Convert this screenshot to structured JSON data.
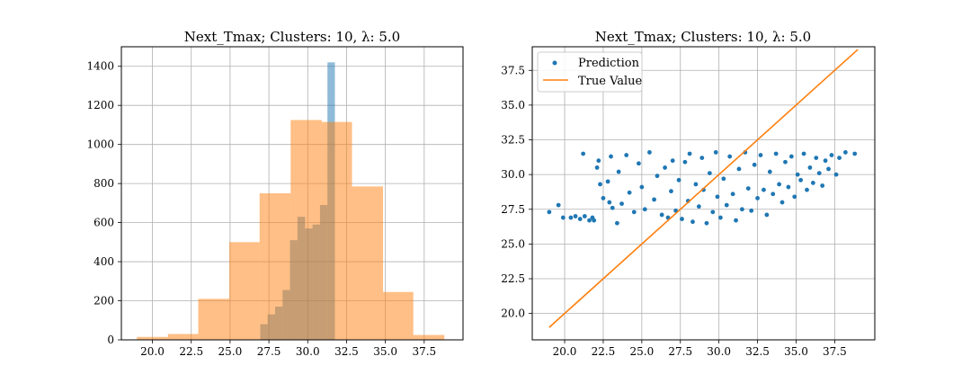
{
  "chart_data": [
    {
      "type": "histogram",
      "title": "Next_Tmax; Clusters: 10, λ: 5.0",
      "xlabel": "",
      "ylabel": "",
      "xlim": [
        18.0,
        40.0
      ],
      "ylim": [
        0,
        1500
      ],
      "xticks": [
        "20.0",
        "22.5",
        "25.0",
        "27.5",
        "30.0",
        "32.5",
        "35.0",
        "37.5"
      ],
      "yticks": [
        "0",
        "200",
        "400",
        "600",
        "800",
        "1000",
        "1200",
        "1400"
      ],
      "grid": true,
      "series": [
        {
          "color": "#1f77b4",
          "opacity": 0.5,
          "bins": [
            {
              "x0": 26.45,
              "x1": 26.94,
              "value": 0
            },
            {
              "x0": 26.94,
              "x1": 27.42,
              "value": 80
            },
            {
              "x0": 27.42,
              "x1": 27.9,
              "value": 130
            },
            {
              "x0": 27.9,
              "x1": 28.38,
              "value": 170
            },
            {
              "x0": 28.38,
              "x1": 28.86,
              "value": 255
            },
            {
              "x0": 28.86,
              "x1": 29.34,
              "value": 510
            },
            {
              "x0": 29.34,
              "x1": 29.83,
              "value": 630
            },
            {
              "x0": 29.83,
              "x1": 30.31,
              "value": 570
            },
            {
              "x0": 30.31,
              "x1": 30.79,
              "value": 590
            },
            {
              "x0": 30.79,
              "x1": 31.27,
              "value": 690
            },
            {
              "x0": 31.27,
              "x1": 31.75,
              "value": 1420
            }
          ]
        },
        {
          "color": "#ff7f0e",
          "opacity": 0.5,
          "bins": [
            {
              "x0": 19.0,
              "x1": 21.0,
              "value": 15
            },
            {
              "x0": 21.0,
              "x1": 22.95,
              "value": 30
            },
            {
              "x0": 22.95,
              "x1": 24.95,
              "value": 210
            },
            {
              "x0": 24.95,
              "x1": 26.9,
              "value": 500
            },
            {
              "x0": 26.9,
              "x1": 28.9,
              "value": 750
            },
            {
              "x0": 28.9,
              "x1": 30.9,
              "value": 1125
            },
            {
              "x0": 30.9,
              "x1": 32.85,
              "value": 1115
            },
            {
              "x0": 32.85,
              "x1": 34.85,
              "value": 785
            },
            {
              "x0": 34.85,
              "x1": 36.8,
              "value": 245
            },
            {
              "x0": 36.8,
              "x1": 38.8,
              "value": 25
            }
          ]
        }
      ]
    },
    {
      "type": "scatter",
      "title": "Next_Tmax; Clusters: 10, λ: 5.0",
      "xlabel": "",
      "ylabel": "",
      "xlim": [
        17.9,
        40.1
      ],
      "ylim": [
        18.1,
        39.2
      ],
      "xticks": [
        "20.0",
        "22.5",
        "25.0",
        "27.5",
        "30.0",
        "32.5",
        "35.0",
        "37.5"
      ],
      "yticks": [
        "20.0",
        "22.5",
        "25.0",
        "27.5",
        "30.0",
        "32.5",
        "35.0",
        "37.5"
      ],
      "grid": true,
      "legend": {
        "placement": "top-left",
        "entries": [
          "Prediction",
          "True Value"
        ]
      },
      "series": [
        {
          "name": "Prediction",
          "kind": "points",
          "color": "#1f77b4",
          "points": [
            [
              19.0,
              27.3
            ],
            [
              19.6,
              27.8
            ],
            [
              19.9,
              26.9
            ],
            [
              20.4,
              26.9
            ],
            [
              20.7,
              27.0
            ],
            [
              21.0,
              26.8
            ],
            [
              21.2,
              31.5
            ],
            [
              21.3,
              27.0
            ],
            [
              21.6,
              26.7
            ],
            [
              21.8,
              26.9
            ],
            [
              21.9,
              26.7
            ],
            [
              22.1,
              30.5
            ],
            [
              22.2,
              31.0
            ],
            [
              22.3,
              29.3
            ],
            [
              22.5,
              28.3
            ],
            [
              22.8,
              29.5
            ],
            [
              22.9,
              28.0
            ],
            [
              23.0,
              31.3
            ],
            [
              23.1,
              27.6
            ],
            [
              23.4,
              26.5
            ],
            [
              23.5,
              30.2
            ],
            [
              23.7,
              27.9
            ],
            [
              24.0,
              31.4
            ],
            [
              24.2,
              28.7
            ],
            [
              24.5,
              27.3
            ],
            [
              24.8,
              30.8
            ],
            [
              25.0,
              29.1
            ],
            [
              25.2,
              27.5
            ],
            [
              25.5,
              31.6
            ],
            [
              25.8,
              28.2
            ],
            [
              26.0,
              29.9
            ],
            [
              26.3,
              27.1
            ],
            [
              26.5,
              30.5
            ],
            [
              26.7,
              26.9
            ],
            [
              26.9,
              28.8
            ],
            [
              27.0,
              31.0
            ],
            [
              27.2,
              27.4
            ],
            [
              27.4,
              29.6
            ],
            [
              27.6,
              26.8
            ],
            [
              27.8,
              30.9
            ],
            [
              28.0,
              28.1
            ],
            [
              28.1,
              31.5
            ],
            [
              28.3,
              26.6
            ],
            [
              28.5,
              29.3
            ],
            [
              28.7,
              27.7
            ],
            [
              28.9,
              31.2
            ],
            [
              29.0,
              28.9
            ],
            [
              29.2,
              26.5
            ],
            [
              29.4,
              30.1
            ],
            [
              29.6,
              27.3
            ],
            [
              29.8,
              31.6
            ],
            [
              29.9,
              28.4
            ],
            [
              30.1,
              26.9
            ],
            [
              30.3,
              29.7
            ],
            [
              30.5,
              27.8
            ],
            [
              30.7,
              31.3
            ],
            [
              30.9,
              28.6
            ],
            [
              31.1,
              26.7
            ],
            [
              31.3,
              30.4
            ],
            [
              31.5,
              27.5
            ],
            [
              31.7,
              31.6
            ],
            [
              31.9,
              29.0
            ],
            [
              32.1,
              27.4
            ],
            [
              32.3,
              30.7
            ],
            [
              32.5,
              28.3
            ],
            [
              32.7,
              31.4
            ],
            [
              32.9,
              28.9
            ],
            [
              33.1,
              27.1
            ],
            [
              33.3,
              30.2
            ],
            [
              33.5,
              28.6
            ],
            [
              33.7,
              31.5
            ],
            [
              33.9,
              29.3
            ],
            [
              34.1,
              28.0
            ],
            [
              34.3,
              30.9
            ],
            [
              34.5,
              29.1
            ],
            [
              34.7,
              31.3
            ],
            [
              34.9,
              28.4
            ],
            [
              35.1,
              30.0
            ],
            [
              35.3,
              29.6
            ],
            [
              35.5,
              31.5
            ],
            [
              35.7,
              28.9
            ],
            [
              35.9,
              30.5
            ],
            [
              36.1,
              29.4
            ],
            [
              36.3,
              31.2
            ],
            [
              36.5,
              30.1
            ],
            [
              36.7,
              29.2
            ],
            [
              36.9,
              31.0
            ],
            [
              37.1,
              30.4
            ],
            [
              37.3,
              31.4
            ],
            [
              37.6,
              30.0
            ],
            [
              37.8,
              31.2
            ],
            [
              38.2,
              31.6
            ],
            [
              38.8,
              31.5
            ]
          ]
        },
        {
          "name": "True Value",
          "kind": "line",
          "color": "#ff7f0e",
          "points": [
            [
              19.0,
              19.0
            ],
            [
              39.0,
              39.0
            ]
          ]
        }
      ]
    }
  ]
}
